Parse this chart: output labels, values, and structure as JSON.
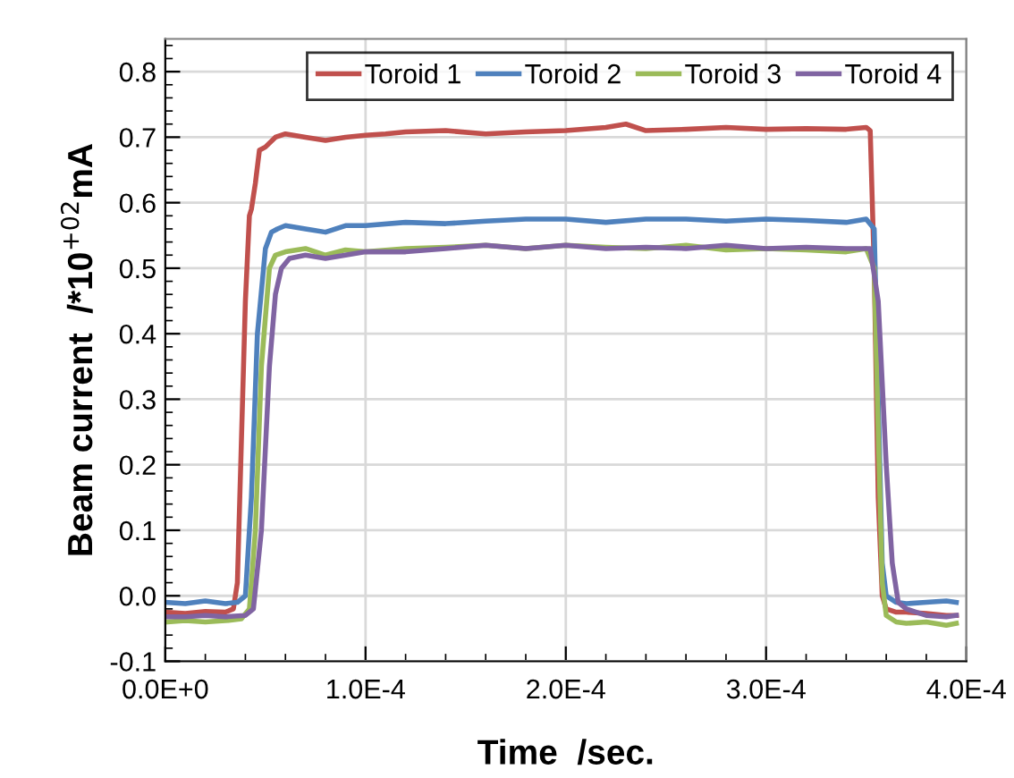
{
  "chart_data": {
    "type": "line",
    "xlabel": "Time  /sec.",
    "ylabel": "Beam current  /*10$^{+02}$mA",
    "xlim": [
      0,
      0.0004
    ],
    "ylim": [
      -0.1,
      0.85
    ],
    "xticks": [
      {
        "value": 0,
        "label": "0.0E+0"
      },
      {
        "value": 0.0001,
        "label": "1.0E-4"
      },
      {
        "value": 0.0002,
        "label": "2.0E-4"
      },
      {
        "value": 0.0003,
        "label": "3.0E-4"
      },
      {
        "value": 0.0004,
        "label": "4.0E-4"
      }
    ],
    "yticks": [
      {
        "value": -0.1,
        "label": "-0.1"
      },
      {
        "value": 0,
        "label": "0.0"
      },
      {
        "value": 0.1,
        "label": "0.1"
      },
      {
        "value": 0.2,
        "label": "0.2"
      },
      {
        "value": 0.3,
        "label": "0.3"
      },
      {
        "value": 0.4,
        "label": "0.4"
      },
      {
        "value": 0.5,
        "label": "0.5"
      },
      {
        "value": 0.6,
        "label": "0.6"
      },
      {
        "value": 0.7,
        "label": "0.7"
      },
      {
        "value": 0.8,
        "label": "0.8"
      }
    ],
    "grid": true,
    "legend": "top right",
    "marker": "none",
    "line_style": "solid",
    "series": [
      {
        "name": "Toroid 1",
        "color": "#c0504d",
        "x": [
          0,
          1e-05,
          2e-05,
          3e-05,
          3.4e-05,
          3.6e-05,
          4e-05,
          4.2e-05,
          4.3e-05,
          4.5e-05,
          4.7e-05,
          5e-05,
          5.5e-05,
          6e-05,
          7e-05,
          8e-05,
          9e-05,
          0.0001,
          0.00011,
          0.00012,
          0.00014,
          0.00016,
          0.00018,
          0.0002,
          0.00022,
          0.00023,
          0.00024,
          0.00026,
          0.00028,
          0.0003,
          0.00032,
          0.00034,
          0.00035,
          0.000352,
          0.000354,
          0.000356,
          0.000358,
          0.00036,
          0.000365,
          0.00037,
          0.00038,
          0.00039,
          0.000395
        ],
        "values": [
          -0.025,
          -0.027,
          -0.024,
          -0.025,
          -0.02,
          0.02,
          0.45,
          0.58,
          0.59,
          0.63,
          0.68,
          0.685,
          0.7,
          0.705,
          0.7,
          0.695,
          0.7,
          0.703,
          0.705,
          0.708,
          0.71,
          0.705,
          0.708,
          0.71,
          0.715,
          0.72,
          0.71,
          0.712,
          0.715,
          0.712,
          0.713,
          0.712,
          0.715,
          0.71,
          0.5,
          0.15,
          0.0,
          -0.02,
          -0.025,
          -0.025,
          -0.027,
          -0.03,
          -0.03
        ]
      },
      {
        "name": "Toroid 2",
        "color": "#4f81bd",
        "x": [
          0,
          1e-05,
          2e-05,
          3e-05,
          3.6e-05,
          4e-05,
          4.3e-05,
          4.6e-05,
          5e-05,
          5.3e-05,
          5.6e-05,
          6e-05,
          7e-05,
          8e-05,
          9e-05,
          0.0001,
          0.00012,
          0.00014,
          0.00016,
          0.00018,
          0.0002,
          0.00022,
          0.00024,
          0.00026,
          0.00028,
          0.0003,
          0.00032,
          0.00034,
          0.00035,
          0.000354,
          0.000356,
          0.000358,
          0.00036,
          0.000365,
          0.00037,
          0.00038,
          0.00039,
          0.000395
        ],
        "values": [
          -0.01,
          -0.012,
          -0.008,
          -0.012,
          -0.01,
          0.0,
          0.15,
          0.4,
          0.53,
          0.555,
          0.56,
          0.565,
          0.56,
          0.555,
          0.565,
          0.565,
          0.57,
          0.568,
          0.572,
          0.575,
          0.575,
          0.57,
          0.575,
          0.575,
          0.572,
          0.575,
          0.573,
          0.57,
          0.575,
          0.56,
          0.3,
          0.05,
          0.0,
          -0.01,
          -0.012,
          -0.01,
          -0.008,
          -0.01
        ]
      },
      {
        "name": "Toroid 3",
        "color": "#9bbb59",
        "x": [
          0,
          1e-05,
          2e-05,
          3e-05,
          3.8e-05,
          4.2e-05,
          4.5e-05,
          4.8e-05,
          5.2e-05,
          5.5e-05,
          6e-05,
          7e-05,
          8e-05,
          9e-05,
          0.0001,
          0.00012,
          0.00014,
          0.00016,
          0.00018,
          0.0002,
          0.00022,
          0.00024,
          0.00026,
          0.00028,
          0.0003,
          0.00032,
          0.00034,
          0.00035,
          0.000354,
          0.000356,
          0.000358,
          0.00036,
          0.000365,
          0.00037,
          0.00038,
          0.00039,
          0.000395
        ],
        "values": [
          -0.04,
          -0.038,
          -0.04,
          -0.038,
          -0.035,
          -0.02,
          0.1,
          0.35,
          0.5,
          0.52,
          0.525,
          0.53,
          0.52,
          0.528,
          0.525,
          0.53,
          0.532,
          0.535,
          0.53,
          0.535,
          0.532,
          0.53,
          0.535,
          0.528,
          0.53,
          0.528,
          0.525,
          0.53,
          0.5,
          0.25,
          0.02,
          -0.03,
          -0.04,
          -0.042,
          -0.04,
          -0.045,
          -0.042
        ]
      },
      {
        "name": "Toroid 4",
        "color": "#8064a2",
        "x": [
          0,
          1e-05,
          2e-05,
          3e-05,
          4e-05,
          4.4e-05,
          4.8e-05,
          5.2e-05,
          5.5e-05,
          5.8e-05,
          6.2e-05,
          7e-05,
          8e-05,
          9e-05,
          0.0001,
          0.00012,
          0.00014,
          0.00016,
          0.00018,
          0.0002,
          0.00022,
          0.00024,
          0.00026,
          0.00028,
          0.0003,
          0.00032,
          0.00034,
          0.000352,
          0.000356,
          0.00036,
          0.000363,
          0.000366,
          0.00037,
          0.000375,
          0.00038,
          0.00039,
          0.000395
        ],
        "values": [
          -0.032,
          -0.032,
          -0.03,
          -0.032,
          -0.03,
          -0.02,
          0.1,
          0.35,
          0.46,
          0.5,
          0.515,
          0.52,
          0.515,
          0.52,
          0.525,
          0.525,
          0.53,
          0.535,
          0.53,
          0.535,
          0.53,
          0.532,
          0.53,
          0.535,
          0.53,
          0.532,
          0.53,
          0.53,
          0.45,
          0.2,
          0.05,
          -0.01,
          -0.02,
          -0.025,
          -0.03,
          -0.032,
          -0.03
        ]
      }
    ]
  }
}
